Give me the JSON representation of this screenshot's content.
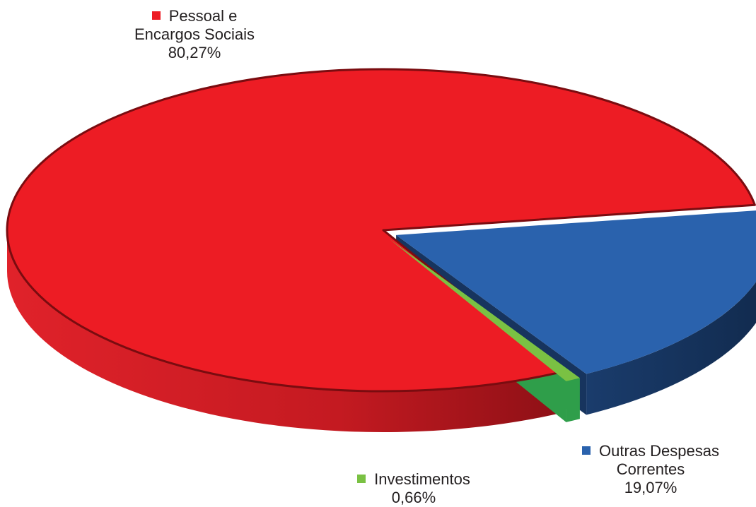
{
  "chart_data": {
    "type": "pie",
    "style": "3d",
    "slices": [
      {
        "label_lines": [
          "Pessoal e",
          "Encargos Sociais"
        ],
        "value_label": "80,27%",
        "value": 80.27,
        "color": "#ed1c24",
        "side_color": "#b5141c",
        "exploded": false
      },
      {
        "label_lines": [
          "Outras Despesas",
          "Correntes"
        ],
        "value_label": "19,07%",
        "value": 19.07,
        "color": "#2a62ad",
        "side_color": "#17345e",
        "exploded": true
      },
      {
        "label_lines": [
          "Investimentos"
        ],
        "value_label": "0,66%",
        "value": 0.66,
        "color": "#7ac143",
        "side_color": "#2f9e4a",
        "exploded": true
      }
    ]
  }
}
